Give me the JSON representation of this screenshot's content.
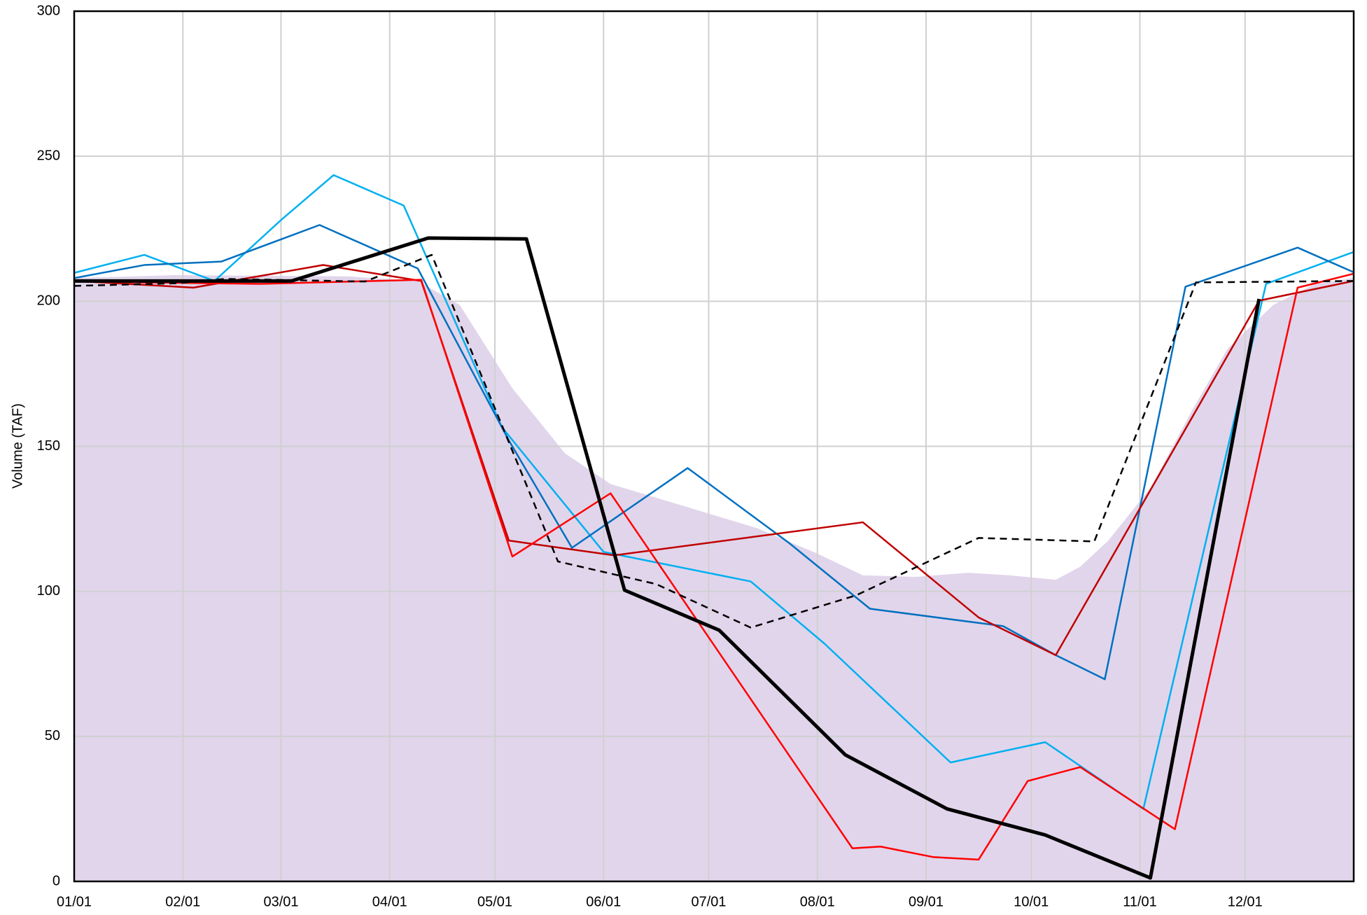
{
  "chart_data": {
    "type": "line",
    "ylabel": "Volume (TAF)",
    "xlim": [
      1,
      366
    ],
    "ylim": [
      0,
      300
    ],
    "grid": true,
    "xticks": [
      {
        "value": 1,
        "label": "01/01"
      },
      {
        "value": 32,
        "label": "02/01"
      },
      {
        "value": 60,
        "label": "03/01"
      },
      {
        "value": 91,
        "label": "04/01"
      },
      {
        "value": 121,
        "label": "05/01"
      },
      {
        "value": 152,
        "label": "06/01"
      },
      {
        "value": 182,
        "label": "07/01"
      },
      {
        "value": 213,
        "label": "08/01"
      },
      {
        "value": 244,
        "label": "09/01"
      },
      {
        "value": 274,
        "label": "10/01"
      },
      {
        "value": 305,
        "label": "11/01"
      },
      {
        "value": 335,
        "label": "12/01"
      }
    ],
    "yticks": [
      0,
      50,
      100,
      150,
      200,
      250,
      300
    ],
    "area": {
      "color": "#e1d5eb",
      "x": [
        1,
        30,
        79,
        99,
        111,
        126,
        141,
        154,
        176,
        196,
        213,
        226,
        241,
        256,
        268,
        281,
        288,
        296,
        308,
        320,
        330,
        343,
        355,
        366
      ],
      "values": [
        208,
        209,
        208.6,
        207,
        198.7,
        170,
        147.6,
        137,
        129,
        121.7,
        113,
        105.5,
        105,
        106.4,
        105.5,
        104,
        108.5,
        117.5,
        135.6,
        162.6,
        183.6,
        198.7,
        206,
        208
      ]
    },
    "series": [
      {
        "color": "#00b0f0",
        "width": 2,
        "dashed": false,
        "x": [
          1,
          21,
          41,
          60,
          75,
          95,
          123,
          152,
          194,
          215,
          251,
          278,
          306,
          341,
          366
        ],
        "values": [
          209.8,
          216,
          207,
          228,
          243.5,
          233,
          156.6,
          113.6,
          103.4,
          82,
          41,
          48,
          25,
          206,
          217
        ]
      },
      {
        "color": "#0070c0",
        "width": 2,
        "dashed": false,
        "x": [
          1,
          21,
          43,
          71,
          99,
          125,
          143,
          176,
          205,
          228,
          266,
          281,
          295,
          318,
          350,
          366
        ],
        "values": [
          208,
          212.5,
          213.7,
          226.3,
          211.3,
          152,
          115,
          142.5,
          116.6,
          94,
          88,
          78,
          69.7,
          205,
          218.5,
          210
        ]
      },
      {
        "color": "#c00000",
        "width": 2,
        "dashed": false,
        "x": [
          1,
          35,
          72,
          100,
          125,
          155,
          226,
          259,
          281,
          339,
          366
        ],
        "values": [
          207,
          204.7,
          212.5,
          207,
          117.5,
          112.4,
          123.8,
          91,
          78,
          200.2,
          207
        ]
      },
      {
        "color": "#ff0000",
        "width": 2,
        "dashed": false,
        "x": [
          1,
          54,
          100,
          126,
          154,
          223,
          231,
          246,
          259,
          273,
          288,
          315,
          350,
          366
        ],
        "values": [
          206.8,
          206,
          207.4,
          112,
          133.8,
          11.4,
          12,
          8.4,
          7.5,
          34.6,
          39.4,
          18,
          204.7,
          209.5
        ]
      },
      {
        "color": "#000000",
        "width": 2,
        "dashed": true,
        "x": [
          1,
          30,
          44,
          84,
          103,
          139,
          167,
          194,
          224,
          259,
          292,
          321,
          366
        ],
        "values": [
          205.3,
          206.2,
          207.7,
          206.8,
          216,
          110.3,
          102.5,
          87.5,
          98.6,
          118.4,
          117.2,
          206.5,
          207
        ]
      },
      {
        "color": "#000000",
        "width": 4,
        "dashed": false,
        "x": [
          1,
          63,
          102,
          130,
          158,
          185,
          221,
          250,
          278,
          308,
          339
        ],
        "values": [
          207,
          207,
          221.8,
          221.5,
          100.4,
          86.6,
          43.6,
          25,
          16,
          1.2,
          200.8
        ]
      }
    ]
  }
}
